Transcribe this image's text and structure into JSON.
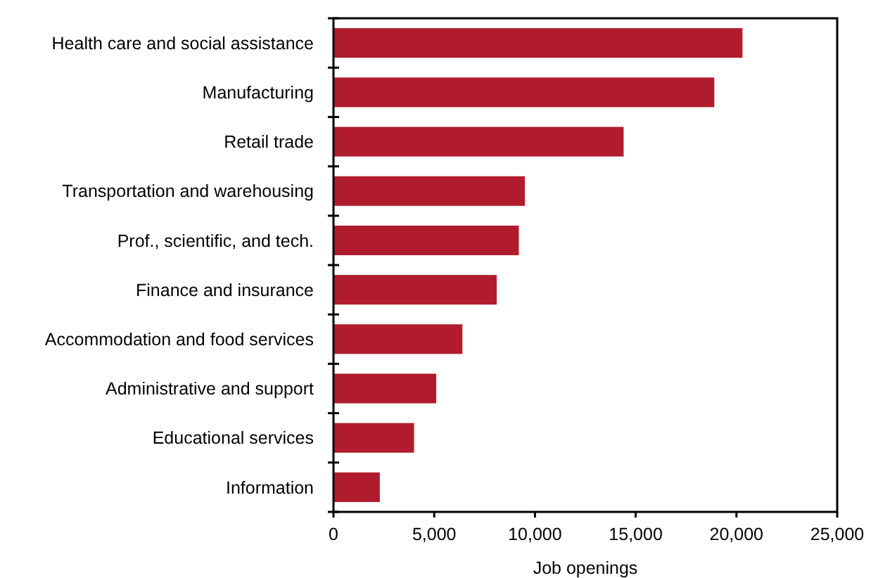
{
  "chart_data": {
    "type": "bar",
    "orientation": "horizontal",
    "xlabel": "Job openings",
    "categories": [
      "Health care and social assistance",
      "Manufacturing",
      "Retail trade",
      "Transportation and warehousing",
      "Prof., scientific, and tech.",
      "Finance and insurance",
      "Accommodation and food services",
      "Administrative and support",
      "Educational services",
      "Information"
    ],
    "values": [
      20300,
      18900,
      14400,
      9500,
      9200,
      8100,
      6400,
      5100,
      4000,
      2300
    ],
    "color": "#b01c2e",
    "xlim": [
      0,
      25000
    ],
    "xticks": [
      0,
      {
        "value": 5000,
        "label": "5,000"
      },
      {
        "value": 10000,
        "label": "10,000"
      },
      {
        "value": 15000,
        "label": "15,000"
      },
      {
        "value": 20000,
        "label": "20,000"
      },
      {
        "value": 25000,
        "label": "25,000"
      }
    ],
    "grid": false
  }
}
